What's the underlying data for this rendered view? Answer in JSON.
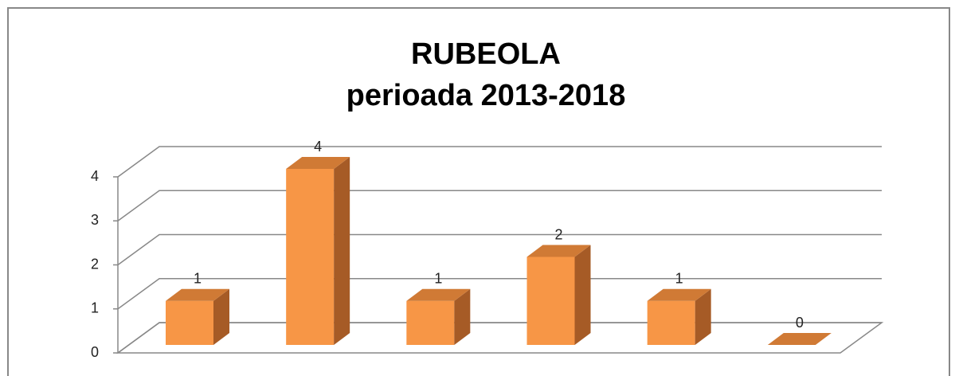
{
  "chart_data": {
    "type": "bar3d",
    "title": [
      "RUBEOLA",
      "perioada 2013-2018"
    ],
    "categories": [
      null,
      null,
      null,
      null,
      null,
      null
    ],
    "values": [
      1,
      4,
      1,
      2,
      1,
      0
    ],
    "color": "#f79646",
    "ylim": [
      0,
      4
    ],
    "yticks": [
      0,
      1,
      2,
      3,
      4
    ],
    "grid": true
  }
}
